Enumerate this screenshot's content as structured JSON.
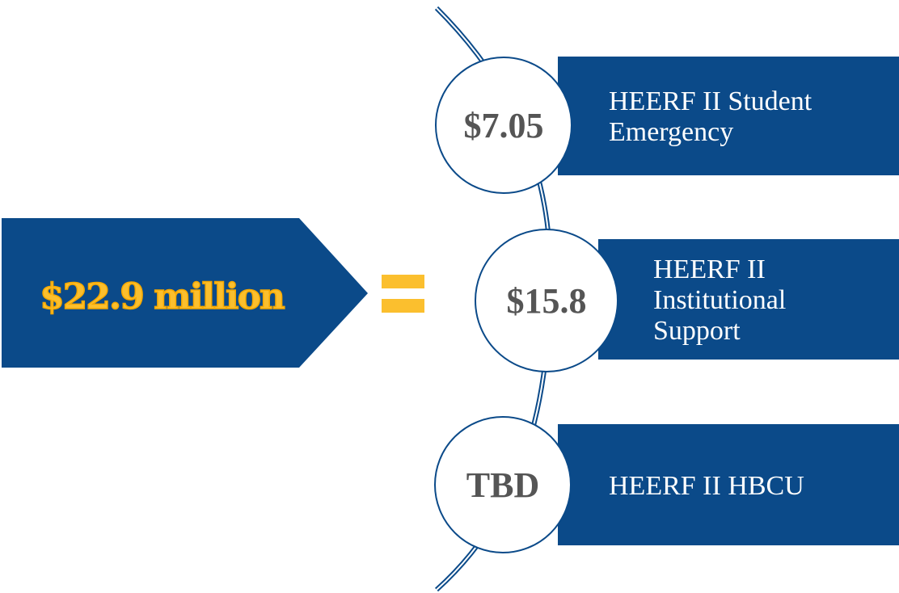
{
  "total": "$22.9 million",
  "items": [
    {
      "value": "$7.05",
      "label": [
        "HEERF II Student",
        "Emergency"
      ]
    },
    {
      "value": "$15.8",
      "label": [
        "HEERF II",
        "Institutional",
        "Support"
      ]
    },
    {
      "value": "TBD",
      "label": [
        "HEERF II HBCU"
      ]
    }
  ]
}
